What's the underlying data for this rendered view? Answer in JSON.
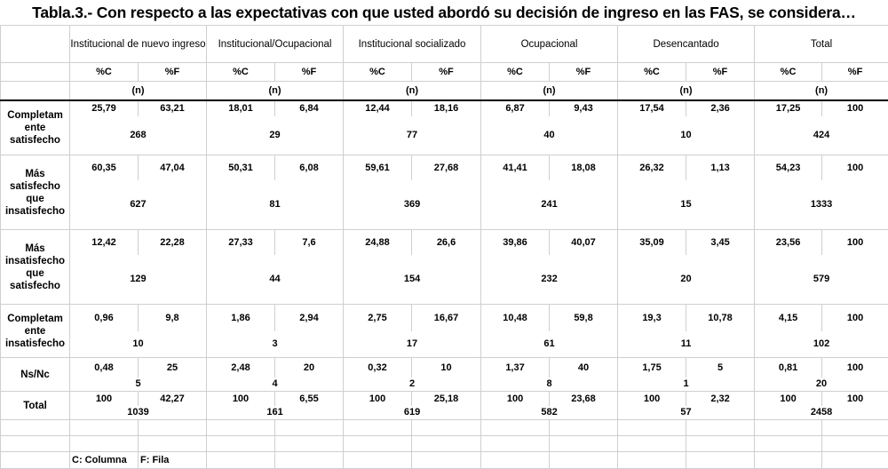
{
  "title": "Tabla.3.- Con respecto a las expectativas con que usted abordó su decisión de ingreso en las FAS, se considera…",
  "groups": [
    "Institucional de nuevo ingreso",
    "Institucional/Ocupacional",
    "Institucional socializado",
    "Ocupacional",
    "Desencantado",
    "Total"
  ],
  "sub_c": "%C",
  "sub_f": "%F",
  "n_label": "(n)",
  "rows": [
    {
      "label": "Completam ente satisfecho",
      "c": [
        "25,79",
        "18,01",
        "12,44",
        "6,87",
        "17,54",
        "17,25"
      ],
      "f": [
        "63,21",
        "6,84",
        "18,16",
        "9,43",
        "2,36",
        "100"
      ],
      "n": [
        "268",
        "29",
        "77",
        "40",
        "10",
        "424"
      ]
    },
    {
      "label": "Más satisfecho que insatisfecho",
      "c": [
        "60,35",
        "50,31",
        "59,61",
        "41,41",
        "26,32",
        "54,23"
      ],
      "f": [
        "47,04",
        "6,08",
        "27,68",
        "18,08",
        "1,13",
        "100"
      ],
      "n": [
        "627",
        "81",
        "369",
        "241",
        "15",
        "1333"
      ]
    },
    {
      "label": "Más insatisfecho que satisfecho",
      "c": [
        "12,42",
        "27,33",
        "24,88",
        "39,86",
        "35,09",
        "23,56"
      ],
      "f": [
        "22,28",
        "7,6",
        "26,6",
        "40,07",
        "3,45",
        "100"
      ],
      "n": [
        "129",
        "44",
        "154",
        "232",
        "20",
        "579"
      ]
    },
    {
      "label": "Completam ente insatisfecho",
      "c": [
        "0,96",
        "1,86",
        "2,75",
        "10,48",
        "19,3",
        "4,15"
      ],
      "f": [
        "9,8",
        "2,94",
        "16,67",
        "59,8",
        "10,78",
        "100"
      ],
      "n": [
        "10",
        "3",
        "17",
        "61",
        "11",
        "102"
      ]
    },
    {
      "label": "Ns/Nc",
      "c": [
        "0,48",
        "2,48",
        "0,32",
        "1,37",
        "1,75",
        "0,81"
      ],
      "f": [
        "25",
        "20",
        "10",
        "40",
        "5",
        "100"
      ],
      "n": [
        "5",
        "4",
        "2",
        "8",
        "1",
        "20"
      ]
    },
    {
      "label": "Total",
      "c": [
        "100",
        "100",
        "100",
        "100",
        "100",
        "100"
      ],
      "f": [
        "42,27",
        "6,55",
        "25,18",
        "23,68",
        "2,32",
        "100"
      ],
      "n": [
        "1039",
        "161",
        "619",
        "582",
        "57",
        "2458"
      ]
    }
  ],
  "footer": {
    "col_note": "C: Columna",
    "row_note": "F: Fila"
  }
}
